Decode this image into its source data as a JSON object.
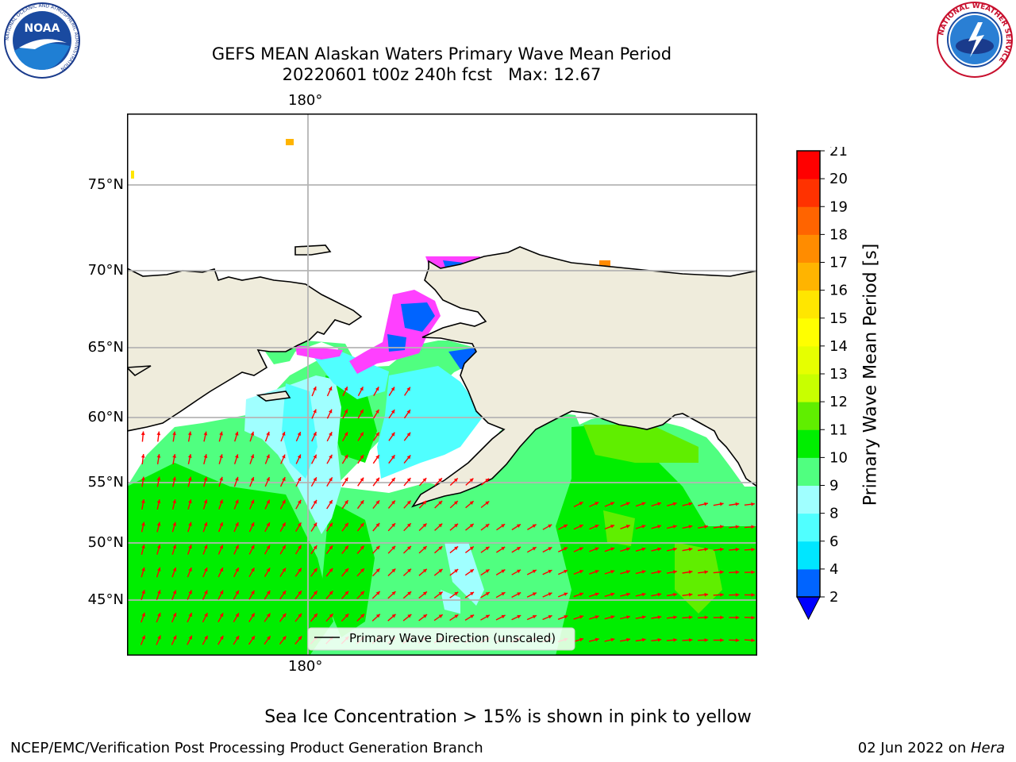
{
  "title_line1": "GEFS MEAN Alaskan Waters Primary Wave Mean Period",
  "title_line2": "20220601 t00z 240h fcst   Max: 12.67",
  "lon_label_top": "180°",
  "lon_label_bottom": "180°",
  "lat_labels": [
    "75°N",
    "70°N",
    "65°N",
    "60°N",
    "55°N",
    "50°N",
    "45°N"
  ],
  "legend_label": "Primary Wave Direction (unscaled)",
  "colorbar": {
    "title": "Primary Wave Mean Period [s]",
    "ticks": [
      "21",
      "20",
      "19",
      "18",
      "17",
      "16",
      "15",
      "14",
      "13",
      "12",
      "11",
      "10",
      "9",
      "8",
      "6",
      "4",
      "2"
    ],
    "levels": [
      2,
      4,
      6,
      8,
      9,
      10,
      11,
      12,
      13,
      14,
      15,
      16,
      17,
      18,
      19,
      20,
      21
    ],
    "colors": [
      "#0064ff",
      "#00e6ff",
      "#50ffff",
      "#a0ffff",
      "#50ff80",
      "#00ee00",
      "#60ee00",
      "#c8ff00",
      "#e6ff00",
      "#ffff00",
      "#ffe600",
      "#ffb400",
      "#ff8c00",
      "#ff6400",
      "#ff3200",
      "#ff0000"
    ],
    "extend_color": "#0000ff"
  },
  "ice_note": "Sea Ice Concentration > 15% is shown in pink to yellow",
  "footer_left": "NCEP/EMC/Verification Post Processing Product Generation Branch",
  "footer_date": "02 Jun 2022 on ",
  "footer_host": "Hera",
  "logos": {
    "noaa": {
      "text": "NOAA",
      "ring_text": "NATIONAL OCEANIC AND ATMOSPHERIC ADMINISTRATION"
    },
    "nws": {
      "ring_text": "NATIONAL WEATHER SERVICE"
    }
  },
  "colors": {
    "land": "#efecdc",
    "ocean_default": "#50ff80",
    "arrow": "#ff0000",
    "ice_pink": "#ff40ff",
    "gridline": "#b4b4b4"
  }
}
